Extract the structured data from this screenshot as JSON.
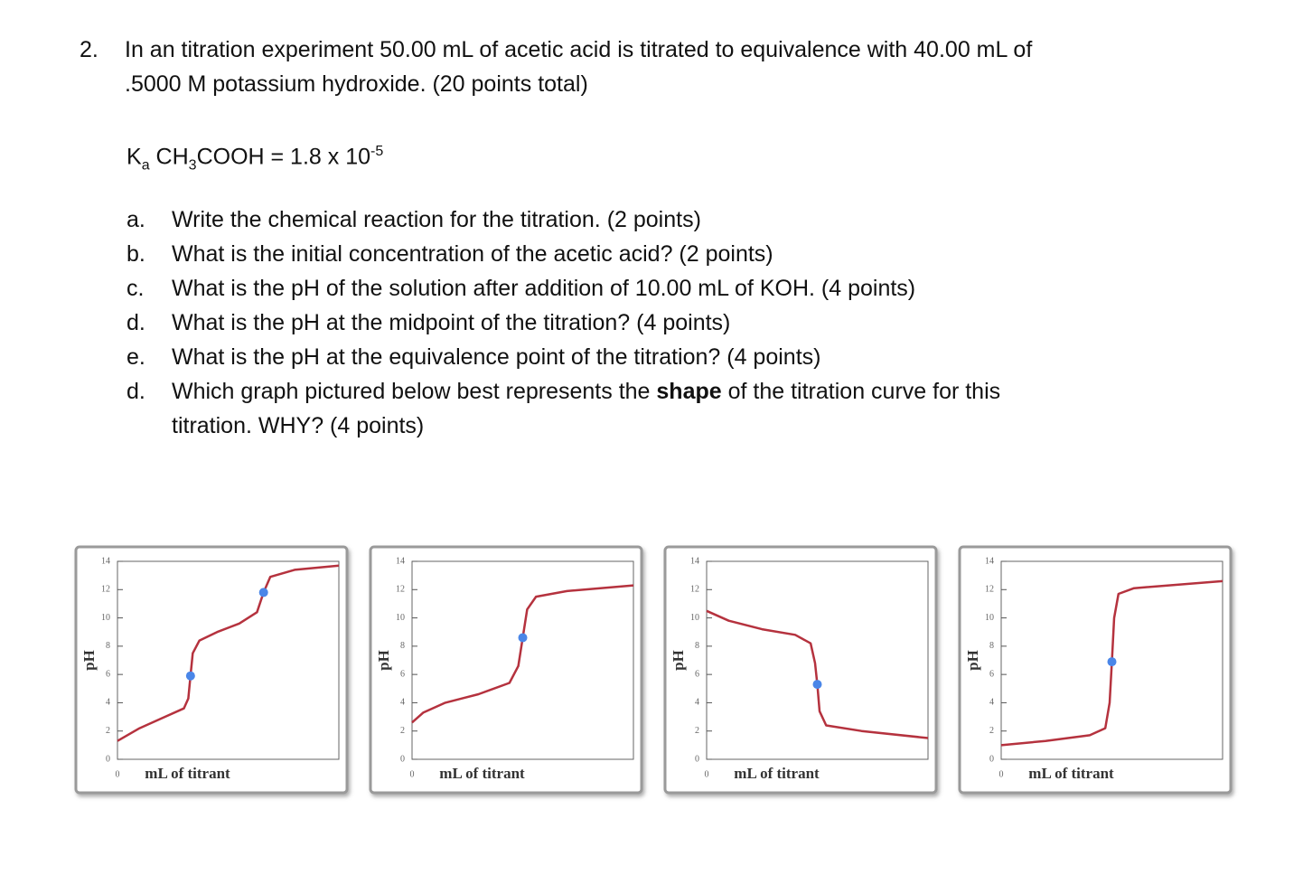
{
  "question": {
    "number": "2.",
    "lines": [
      "In an titration experiment 50.00 mL of acetic acid is titrated to equivalence with 40.00 mL of",
      ".5000 M potassium hydroxide. (20 points total)"
    ],
    "ka": {
      "k": "K",
      "k_sub": "a",
      "formula_a": " CH",
      "formula_sub": "3",
      "formula_b": "COOH = 1.8 x 10",
      "exp": "-5"
    }
  },
  "items": [
    {
      "label": "a.",
      "text": "Write the chemical reaction for the titration. (2 points)"
    },
    {
      "label": "b.",
      "text": "What is the initial concentration of the acetic acid? (2 points)"
    },
    {
      "label": "c.",
      "text": "What is the pH of the solution after addition of 10.00 mL of KOH. (4 points)"
    },
    {
      "label": "d.",
      "text": "What is the pH at the midpoint of the titration? (4 points)"
    },
    {
      "label": "e.",
      "text": "What is the pH at the equivalence point of the titration? (4 points)"
    },
    {
      "label": "d.",
      "text": "Which graph pictured below best represents the ",
      "bold": "shape",
      "text_after": " of the titration curve for this",
      "text_line2": "titration. WHY? (4 points)"
    }
  ],
  "chart_data": [
    {
      "type": "line",
      "x_label": "mL of titrant",
      "y_label": "pH",
      "xlim": [
        0,
        10
      ],
      "xticks": [
        0
      ],
      "ylim": [
        0,
        14
      ],
      "yticks": [
        0,
        2,
        4,
        6,
        8,
        10,
        12,
        14
      ],
      "series": [
        {
          "color": "#b5323e",
          "x": [
            0,
            1,
            2,
            3,
            3.2,
            3.3,
            3.4,
            3.7,
            4.5,
            5.5,
            6.3,
            6.6,
            6.9,
            8,
            10
          ],
          "values": [
            1.3,
            2.2,
            2.9,
            3.6,
            4.3,
            5.9,
            7.5,
            8.4,
            9.0,
            9.6,
            10.4,
            11.8,
            12.9,
            13.4,
            13.7
          ]
        },
        {
          "color": "#4a86e8",
          "marker": "dot",
          "x": [
            3.3,
            6.6
          ],
          "values": [
            5.9,
            11.8
          ]
        }
      ]
    },
    {
      "type": "line",
      "x_label": "mL of titrant",
      "y_label": "pH",
      "xlim": [
        0,
        10
      ],
      "xticks": [
        0
      ],
      "ylim": [
        0,
        14
      ],
      "yticks": [
        0,
        2,
        4,
        6,
        8,
        10,
        12,
        14
      ],
      "series": [
        {
          "color": "#b5323e",
          "x": [
            0,
            0.5,
            1.5,
            3,
            4.4,
            4.8,
            5.0,
            5.2,
            5.6,
            7,
            10
          ],
          "values": [
            2.6,
            3.3,
            4.0,
            4.6,
            5.4,
            6.6,
            8.6,
            10.6,
            11.5,
            11.9,
            12.3
          ]
        },
        {
          "color": "#4a86e8",
          "marker": "dot",
          "x": [
            5.0
          ],
          "values": [
            8.6
          ]
        }
      ]
    },
    {
      "type": "line",
      "x_label": "mL of titrant",
      "y_label": "pH",
      "xlim": [
        0,
        10
      ],
      "xticks": [
        0
      ],
      "ylim": [
        0,
        14
      ],
      "yticks": [
        0,
        2,
        4,
        6,
        8,
        10,
        12,
        14
      ],
      "series": [
        {
          "color": "#b5323e",
          "x": [
            0,
            1,
            2.5,
            4,
            4.7,
            4.9,
            5.0,
            5.1,
            5.4,
            7,
            10
          ],
          "values": [
            10.5,
            9.8,
            9.2,
            8.8,
            8.2,
            6.8,
            5.3,
            3.4,
            2.4,
            2.0,
            1.5
          ]
        },
        {
          "color": "#4a86e8",
          "marker": "dot",
          "x": [
            5.0
          ],
          "values": [
            5.3
          ]
        }
      ]
    },
    {
      "type": "line",
      "x_label": "mL of titrant",
      "y_label": "pH",
      "xlim": [
        0,
        10
      ],
      "xticks": [
        0
      ],
      "ylim": [
        0,
        14
      ],
      "yticks": [
        0,
        2,
        4,
        6,
        8,
        10,
        12,
        14
      ],
      "series": [
        {
          "color": "#b5323e",
          "x": [
            0,
            2,
            4,
            4.7,
            4.9,
            5.0,
            5.1,
            5.3,
            6,
            10
          ],
          "values": [
            1.0,
            1.3,
            1.7,
            2.2,
            4.0,
            6.9,
            10.0,
            11.7,
            12.1,
            12.6
          ]
        },
        {
          "color": "#4a86e8",
          "marker": "dot",
          "x": [
            5.0
          ],
          "values": [
            6.9
          ]
        }
      ]
    }
  ]
}
